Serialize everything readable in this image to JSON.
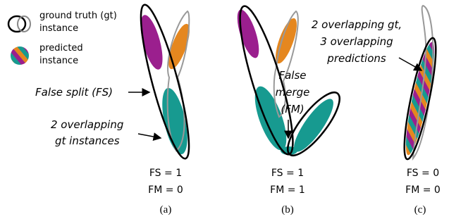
{
  "legend": {
    "gt": [
      "ground truth (gt)",
      "instance"
    ],
    "predicted": [
      "predicted",
      "instance"
    ]
  },
  "panels": [
    {
      "annotations": [
        [
          "False split (FS)"
        ],
        [
          "2 overlapping",
          "gt instances"
        ]
      ],
      "metrics": [
        "FS = 1",
        "FM = 0"
      ],
      "caption": "(a)"
    },
    {
      "annotations": [
        [
          "False",
          "merge",
          "(FM)"
        ]
      ],
      "metrics": [
        "FS = 1",
        "FM = 1"
      ],
      "caption": "(b)"
    },
    {
      "annotations": [
        [
          "2 overlapping gt,",
          "3 overlapping",
          "predictions"
        ]
      ],
      "metrics": [
        "FS = 0",
        "FM = 0"
      ],
      "caption": "(c)"
    }
  ]
}
